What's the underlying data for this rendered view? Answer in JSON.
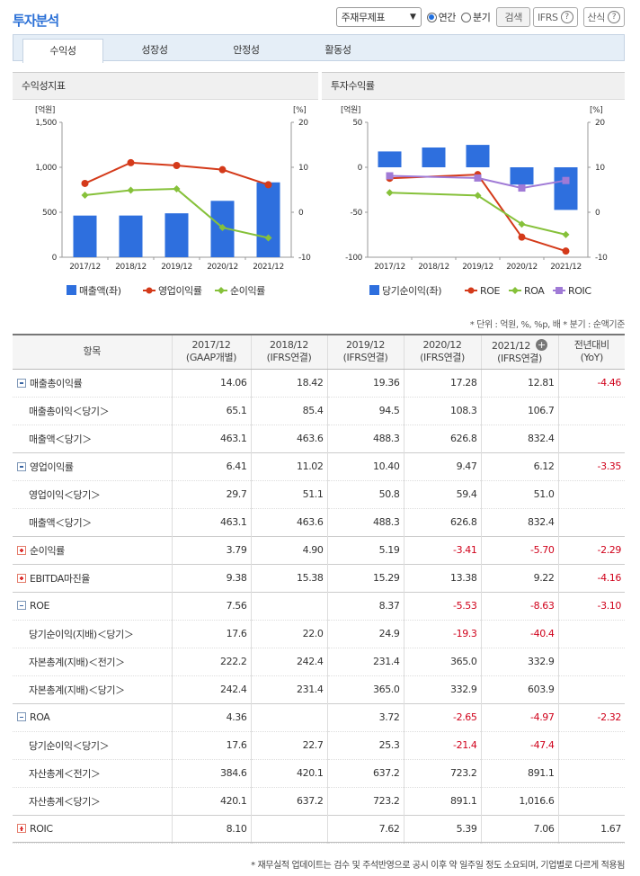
{
  "header": {
    "title": "투자분석",
    "select": "주재무제표",
    "radio_annual": "연간",
    "radio_quarter": "분기",
    "search": "검색",
    "ifrs": "IFRS",
    "formula": "산식"
  },
  "tabs": [
    "수익성",
    "성장성",
    "안정성",
    "활동성"
  ],
  "panel_left": {
    "title": "수익성지표"
  },
  "panel_right": {
    "title": "투자수익률"
  },
  "unit_note": "* 단위 : 억원, %, %p, 배   * 분기 : 순액기준",
  "footer_note": "* 재무실적 업데이트는 검수 및 주석반영으로 공시 이후 약 일주일 정도 소요되며, 기업별로 다르게 적용됨",
  "colors": {
    "bar": "#2e6fde",
    "red": "#d43a1a",
    "green": "#86c13a",
    "purple": "#a07ad6",
    "negative": "#d0021b",
    "accent": "#2a6fd6"
  },
  "chart_data": [
    {
      "type": "bar+line",
      "title": "수익성지표",
      "categories": [
        "2017/12",
        "2018/12",
        "2019/12",
        "2020/12",
        "2021/12"
      ],
      "left_unit": "[억원]",
      "right_unit": "[%]",
      "left_ticks": [
        "1,500",
        "1,000",
        "500",
        "0"
      ],
      "right_ticks": [
        "20",
        "10",
        "0",
        "-10"
      ],
      "ylim_left": [
        0,
        1500
      ],
      "ylim_right": [
        -10,
        20
      ],
      "series": [
        {
          "name": "매출액(좌)",
          "kind": "bar",
          "axis": "left",
          "values": [
            463.1,
            463.6,
            488.3,
            626.8,
            832.4
          ]
        },
        {
          "name": "영업이익률",
          "kind": "line",
          "axis": "right",
          "values": [
            6.41,
            11.02,
            10.4,
            9.47,
            6.12
          ]
        },
        {
          "name": "순이익률",
          "kind": "line",
          "axis": "right",
          "values": [
            3.79,
            4.9,
            5.19,
            -3.41,
            -5.7
          ]
        }
      ]
    },
    {
      "type": "bar+line",
      "title": "투자수익률",
      "categories": [
        "2017/12",
        "2018/12",
        "2019/12",
        "2020/12",
        "2021/12"
      ],
      "left_unit": "[억원]",
      "right_unit": "[%]",
      "left_ticks": [
        "50",
        "0",
        "-50",
        "-100"
      ],
      "right_ticks": [
        "20",
        "10",
        "0",
        "-10"
      ],
      "ylim_left": [
        -100,
        50
      ],
      "ylim_right": [
        -10,
        20
      ],
      "series": [
        {
          "name": "당기순이익(좌)",
          "kind": "bar",
          "axis": "left",
          "values": [
            17.6,
            22.0,
            24.9,
            -19.3,
            -47.4
          ]
        },
        {
          "name": "ROE",
          "kind": "line",
          "axis": "right",
          "values": [
            7.56,
            null,
            8.37,
            -5.53,
            -8.63
          ]
        },
        {
          "name": "ROA",
          "kind": "line",
          "axis": "right",
          "values": [
            4.36,
            null,
            3.72,
            -2.65,
            -4.97
          ]
        },
        {
          "name": "ROIC",
          "kind": "line",
          "axis": "right",
          "values": [
            8.1,
            null,
            7.62,
            5.39,
            7.06
          ]
        }
      ]
    }
  ],
  "table": {
    "headers": [
      [
        "항목",
        ""
      ],
      [
        "2017/12",
        "(GAAP개별)"
      ],
      [
        "2018/12",
        "(IFRS연결)"
      ],
      [
        "2019/12",
        "(IFRS연결)"
      ],
      [
        "2020/12",
        "(IFRS연결)"
      ],
      [
        "2021/12",
        "(IFRS연결)"
      ],
      [
        "전년대비",
        "(YoY)"
      ]
    ],
    "rows": [
      {
        "label": "매출총이익률",
        "kind": "minus",
        "vals": [
          "14.06",
          "18.42",
          "19.36",
          "17.28",
          "12.81",
          "-4.46"
        ]
      },
      {
        "label": "매출총이익＜당기＞",
        "kind": "sub",
        "vals": [
          "65.1",
          "85.4",
          "94.5",
          "108.3",
          "106.7",
          ""
        ]
      },
      {
        "label": "매출액＜당기＞",
        "kind": "sub",
        "vals": [
          "463.1",
          "463.6",
          "488.3",
          "626.8",
          "832.4",
          ""
        ]
      },
      {
        "label": "영업이익률",
        "kind": "minus",
        "vals": [
          "6.41",
          "11.02",
          "10.40",
          "9.47",
          "6.12",
          "-3.35"
        ]
      },
      {
        "label": "영업이익＜당기＞",
        "kind": "sub",
        "vals": [
          "29.7",
          "51.1",
          "50.8",
          "59.4",
          "51.0",
          ""
        ]
      },
      {
        "label": "매출액＜당기＞",
        "kind": "sub",
        "vals": [
          "463.1",
          "463.6",
          "488.3",
          "626.8",
          "832.4",
          ""
        ]
      },
      {
        "label": "순이익률",
        "kind": "plus",
        "vals": [
          "3.79",
          "4.90",
          "5.19",
          "-3.41",
          "-5.70",
          "-2.29"
        ]
      },
      {
        "label": "EBITDA마진율",
        "kind": "plus",
        "vals": [
          "9.38",
          "15.38",
          "15.29",
          "13.38",
          "9.22",
          "-4.16"
        ]
      },
      {
        "label": "ROE",
        "kind": "minus",
        "vals": [
          "7.56",
          "",
          "8.37",
          "-5.53",
          "-8.63",
          "-3.10"
        ]
      },
      {
        "label": "당기순이익(지배)＜당기＞",
        "kind": "sub",
        "vals": [
          "17.6",
          "22.0",
          "24.9",
          "-19.3",
          "-40.4",
          ""
        ]
      },
      {
        "label": "자본총계(지배)＜전기＞",
        "kind": "sub",
        "vals": [
          "222.2",
          "242.4",
          "231.4",
          "365.0",
          "332.9",
          ""
        ]
      },
      {
        "label": "자본총계(지배)＜당기＞",
        "kind": "sub",
        "vals": [
          "242.4",
          "231.4",
          "365.0",
          "332.9",
          "603.9",
          ""
        ]
      },
      {
        "label": "ROA",
        "kind": "minus",
        "vals": [
          "4.36",
          "",
          "3.72",
          "-2.65",
          "-4.97",
          "-2.32"
        ]
      },
      {
        "label": "당기순이익＜당기＞",
        "kind": "sub",
        "vals": [
          "17.6",
          "22.7",
          "25.3",
          "-21.4",
          "-47.4",
          ""
        ]
      },
      {
        "label": "자산총계＜전기＞",
        "kind": "sub",
        "vals": [
          "384.6",
          "420.1",
          "637.2",
          "723.2",
          "891.1",
          ""
        ]
      },
      {
        "label": "자산총계＜당기＞",
        "kind": "sub",
        "vals": [
          "420.1",
          "637.2",
          "723.2",
          "891.1",
          "1,016.6",
          ""
        ]
      },
      {
        "label": "ROIC",
        "kind": "plus",
        "vals": [
          "8.10",
          "",
          "7.62",
          "5.39",
          "7.06",
          "1.67"
        ]
      }
    ]
  }
}
